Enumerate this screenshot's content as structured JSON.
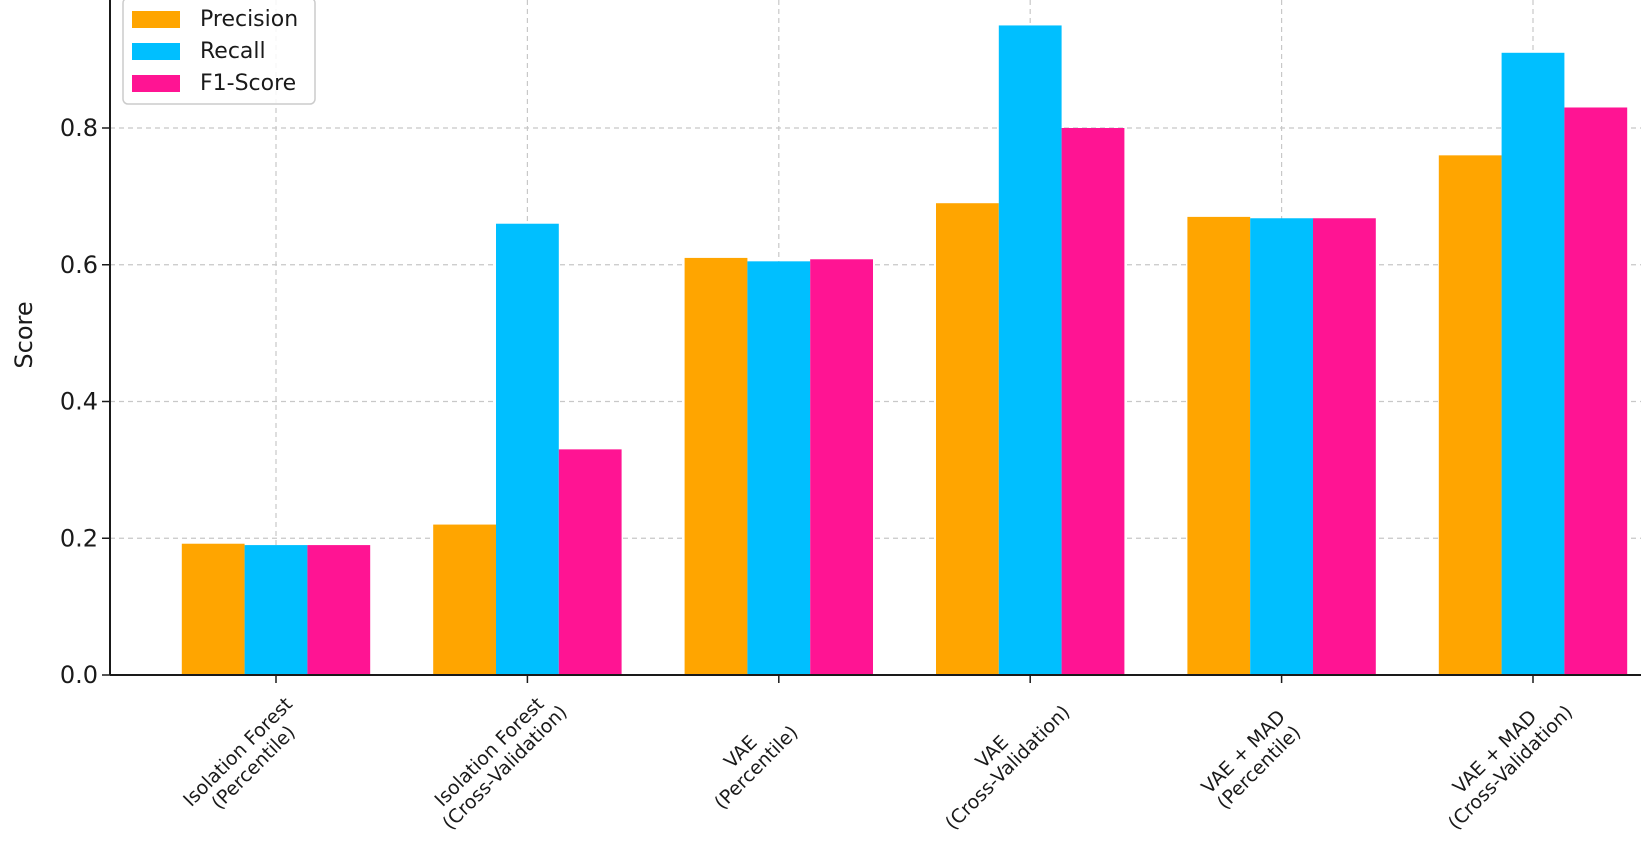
{
  "chart_data": {
    "type": "bar",
    "title": "",
    "xlabel": "",
    "ylabel": "Score",
    "categories": [
      [
        "Isolation Forest",
        "(Percentile)"
      ],
      [
        "Isolation Forest",
        "(Cross-Validation)"
      ],
      [
        "VAE",
        "(Percentile)"
      ],
      [
        "VAE",
        "(Cross-Validation)"
      ],
      [
        "VAE + MAD",
        "(Percentile)"
      ],
      [
        "VAE + MAD",
        "(Cross-Validation)"
      ]
    ],
    "series": [
      {
        "name": "Precision",
        "color": "#FFA500",
        "values": [
          0.192,
          0.22,
          0.61,
          0.69,
          0.67,
          0.76
        ]
      },
      {
        "name": "Recall",
        "color": "#00BFFF",
        "values": [
          0.19,
          0.66,
          0.605,
          0.95,
          0.668,
          0.91
        ]
      },
      {
        "name": "F1-Score",
        "color": "#FF1493",
        "values": [
          0.19,
          0.33,
          0.608,
          0.8,
          0.668,
          0.83
        ]
      }
    ],
    "ylim": [
      0,
      1.0
    ],
    "yticks": [
      "0.0",
      "0.2",
      "0.4",
      "0.6",
      "0.8"
    ],
    "ytick_values": [
      0,
      0.2,
      0.4,
      0.6,
      0.8
    ],
    "grid": true,
    "legend_position": "top-left"
  }
}
